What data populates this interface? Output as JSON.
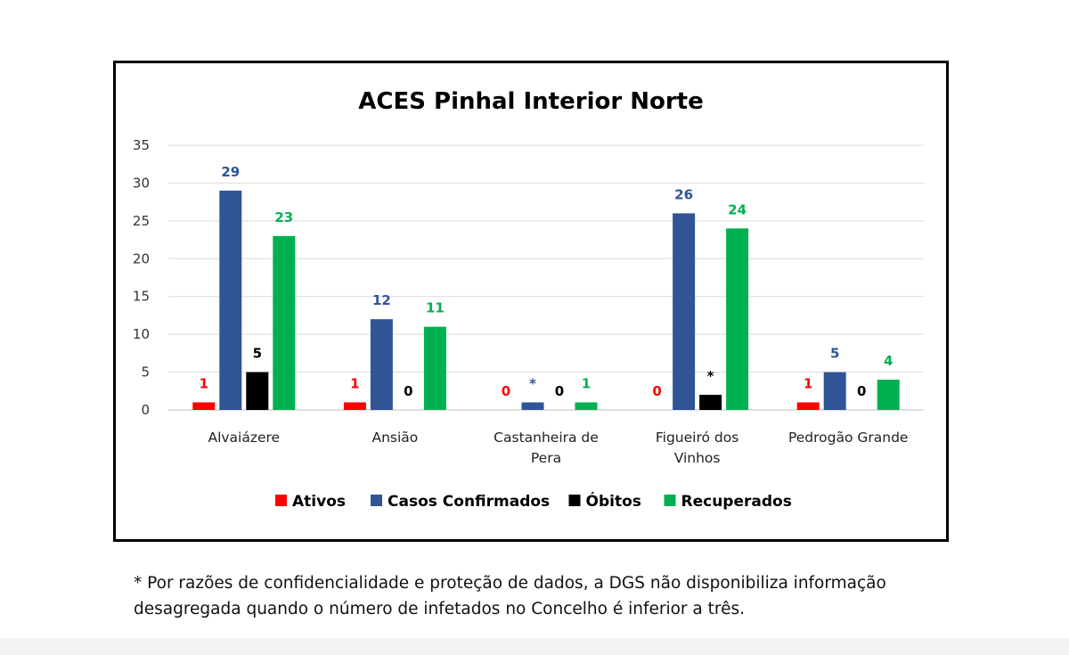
{
  "chart_data": {
    "type": "bar",
    "title": "ACES Pinhal Interior Norte",
    "categories": [
      [
        "Alvaiázere"
      ],
      [
        "Ansião"
      ],
      [
        "Castanheira de",
        "Pera"
      ],
      [
        "Figueiró dos",
        "Vinhos"
      ],
      [
        "Pedrogão Grande"
      ]
    ],
    "series": [
      {
        "name": "Ativos",
        "color": "#ff0000",
        "values": [
          1,
          1,
          0,
          0,
          1
        ],
        "labels": [
          "1",
          "1",
          "0",
          "0",
          "1"
        ]
      },
      {
        "name": "Casos Confirmados",
        "color": "#2f5597",
        "values": [
          29,
          12,
          1,
          26,
          5
        ],
        "labels": [
          "29",
          "12",
          "*",
          "26",
          "5"
        ]
      },
      {
        "name": "Óbitos",
        "color": "#000000",
        "values": [
          5,
          0,
          0,
          2,
          0
        ],
        "labels": [
          "5",
          "0",
          "0",
          "*",
          "0"
        ]
      },
      {
        "name": "Recuperados",
        "color": "#00b050",
        "values": [
          23,
          11,
          1,
          24,
          4
        ],
        "labels": [
          "23",
          "11",
          "1",
          "24",
          "4"
        ]
      }
    ],
    "ylim": [
      0,
      35
    ],
    "yticks": [
      0,
      5,
      10,
      15,
      20,
      25,
      30,
      35
    ],
    "grid": true,
    "legend": "bottom"
  },
  "footnote": {
    "lines": [
      "* Por razões de confidencialidade e proteção de dados, a DGS não disponibiliza informação",
      "desagregada quando o número de infetados no Concelho é inferior a três."
    ]
  }
}
